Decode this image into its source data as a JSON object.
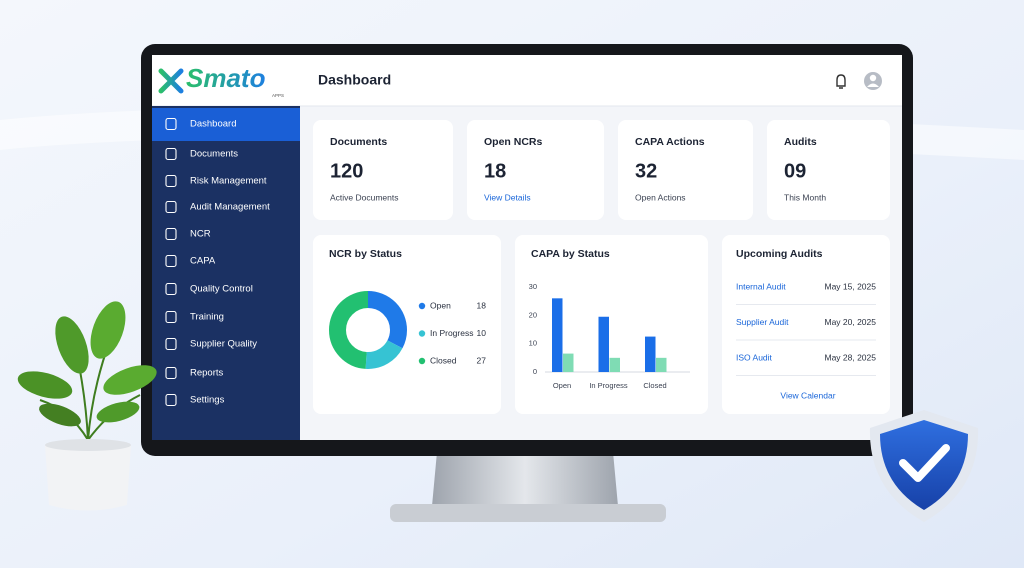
{
  "brand": {
    "name": "Smato",
    "tag": "APPS"
  },
  "header": {
    "title": "Dashboard"
  },
  "sidebar": {
    "items": [
      "Dashboard",
      "Documents",
      "Risk Management",
      "Audit Management",
      "NCR",
      "CAPA",
      "Quality Control",
      "Training",
      "Supplier Quality",
      "Reports",
      "Settings"
    ]
  },
  "stats": [
    {
      "title": "Documents",
      "value": "120",
      "caption": "Active Documents"
    },
    {
      "title": "Open NCRs",
      "value": "18",
      "link": "View Details"
    },
    {
      "title": "CAPA Actions",
      "value": "32",
      "caption": "Open Actions"
    },
    {
      "title": "Audits",
      "value": "09",
      "caption": "This Month"
    }
  ],
  "ncr_chart": {
    "type": "donut",
    "title": "NCR by Status",
    "categories": [
      "Open",
      "In Progress",
      "Closed"
    ],
    "values": [
      18,
      10,
      27
    ],
    "colors": [
      "#1f7ae8",
      "#36c3d3",
      "#22c071"
    ]
  },
  "capa_chart": {
    "type": "bar",
    "title": "CAPA by Status",
    "categories": [
      "Open",
      "In Progress",
      "Closed"
    ],
    "series": [
      {
        "color": "#1a6ee8",
        "values": [
          26,
          19.5,
          12.5
        ]
      },
      {
        "color": "#7fdcb4",
        "values": [
          6.5,
          5,
          5
        ]
      }
    ],
    "ylim": [
      0,
      30
    ],
    "yticks": [
      0,
      10,
      20,
      30
    ]
  },
  "audits": {
    "title": "Upcoming Audits",
    "rows": [
      {
        "name": "Internal Audit",
        "date": "May 15, 2025"
      },
      {
        "name": "Supplier Audit",
        "date": "May 20, 2025"
      },
      {
        "name": "ISO Audit",
        "date": "May 28, 2025"
      }
    ],
    "link": "View Calendar"
  }
}
